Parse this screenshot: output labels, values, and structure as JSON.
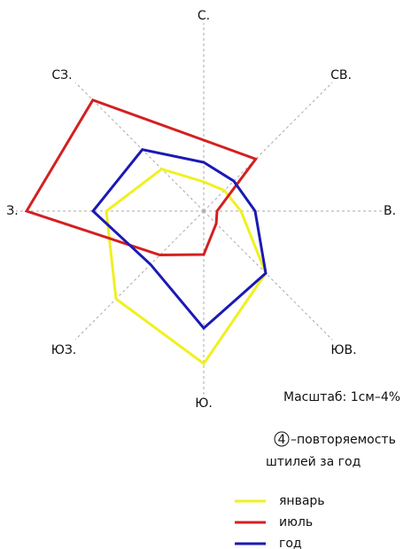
{
  "chart_data": {
    "type": "radar",
    "categories": [
      "С.",
      "СВ.",
      "В.",
      "ЮВ.",
      "Ю.",
      "ЮЗ.",
      "З.",
      "СЗ."
    ],
    "rlim": [
      0,
      20
    ],
    "series": [
      {
        "name": "январь",
        "color": "#f0f020",
        "values": [
          3.3,
          3.3,
          4.2,
          9.9,
          17.2,
          14,
          11,
          6.7
        ]
      },
      {
        "name": "июль",
        "color": "#d42020",
        "values": [
          8,
          8.3,
          1.5,
          2,
          4.9,
          7,
          20,
          17.7
        ]
      },
      {
        "name": "год",
        "color": "#1a1ab4",
        "values": [
          5.5,
          4.8,
          5.8,
          9.9,
          13.2,
          8.5,
          12.5,
          9.8
        ]
      }
    ],
    "scale_label": "Масштаб: 1см–4%",
    "calm_value": "4",
    "calm_text": [
      "–повторяемость",
      "штилей за год"
    ]
  }
}
